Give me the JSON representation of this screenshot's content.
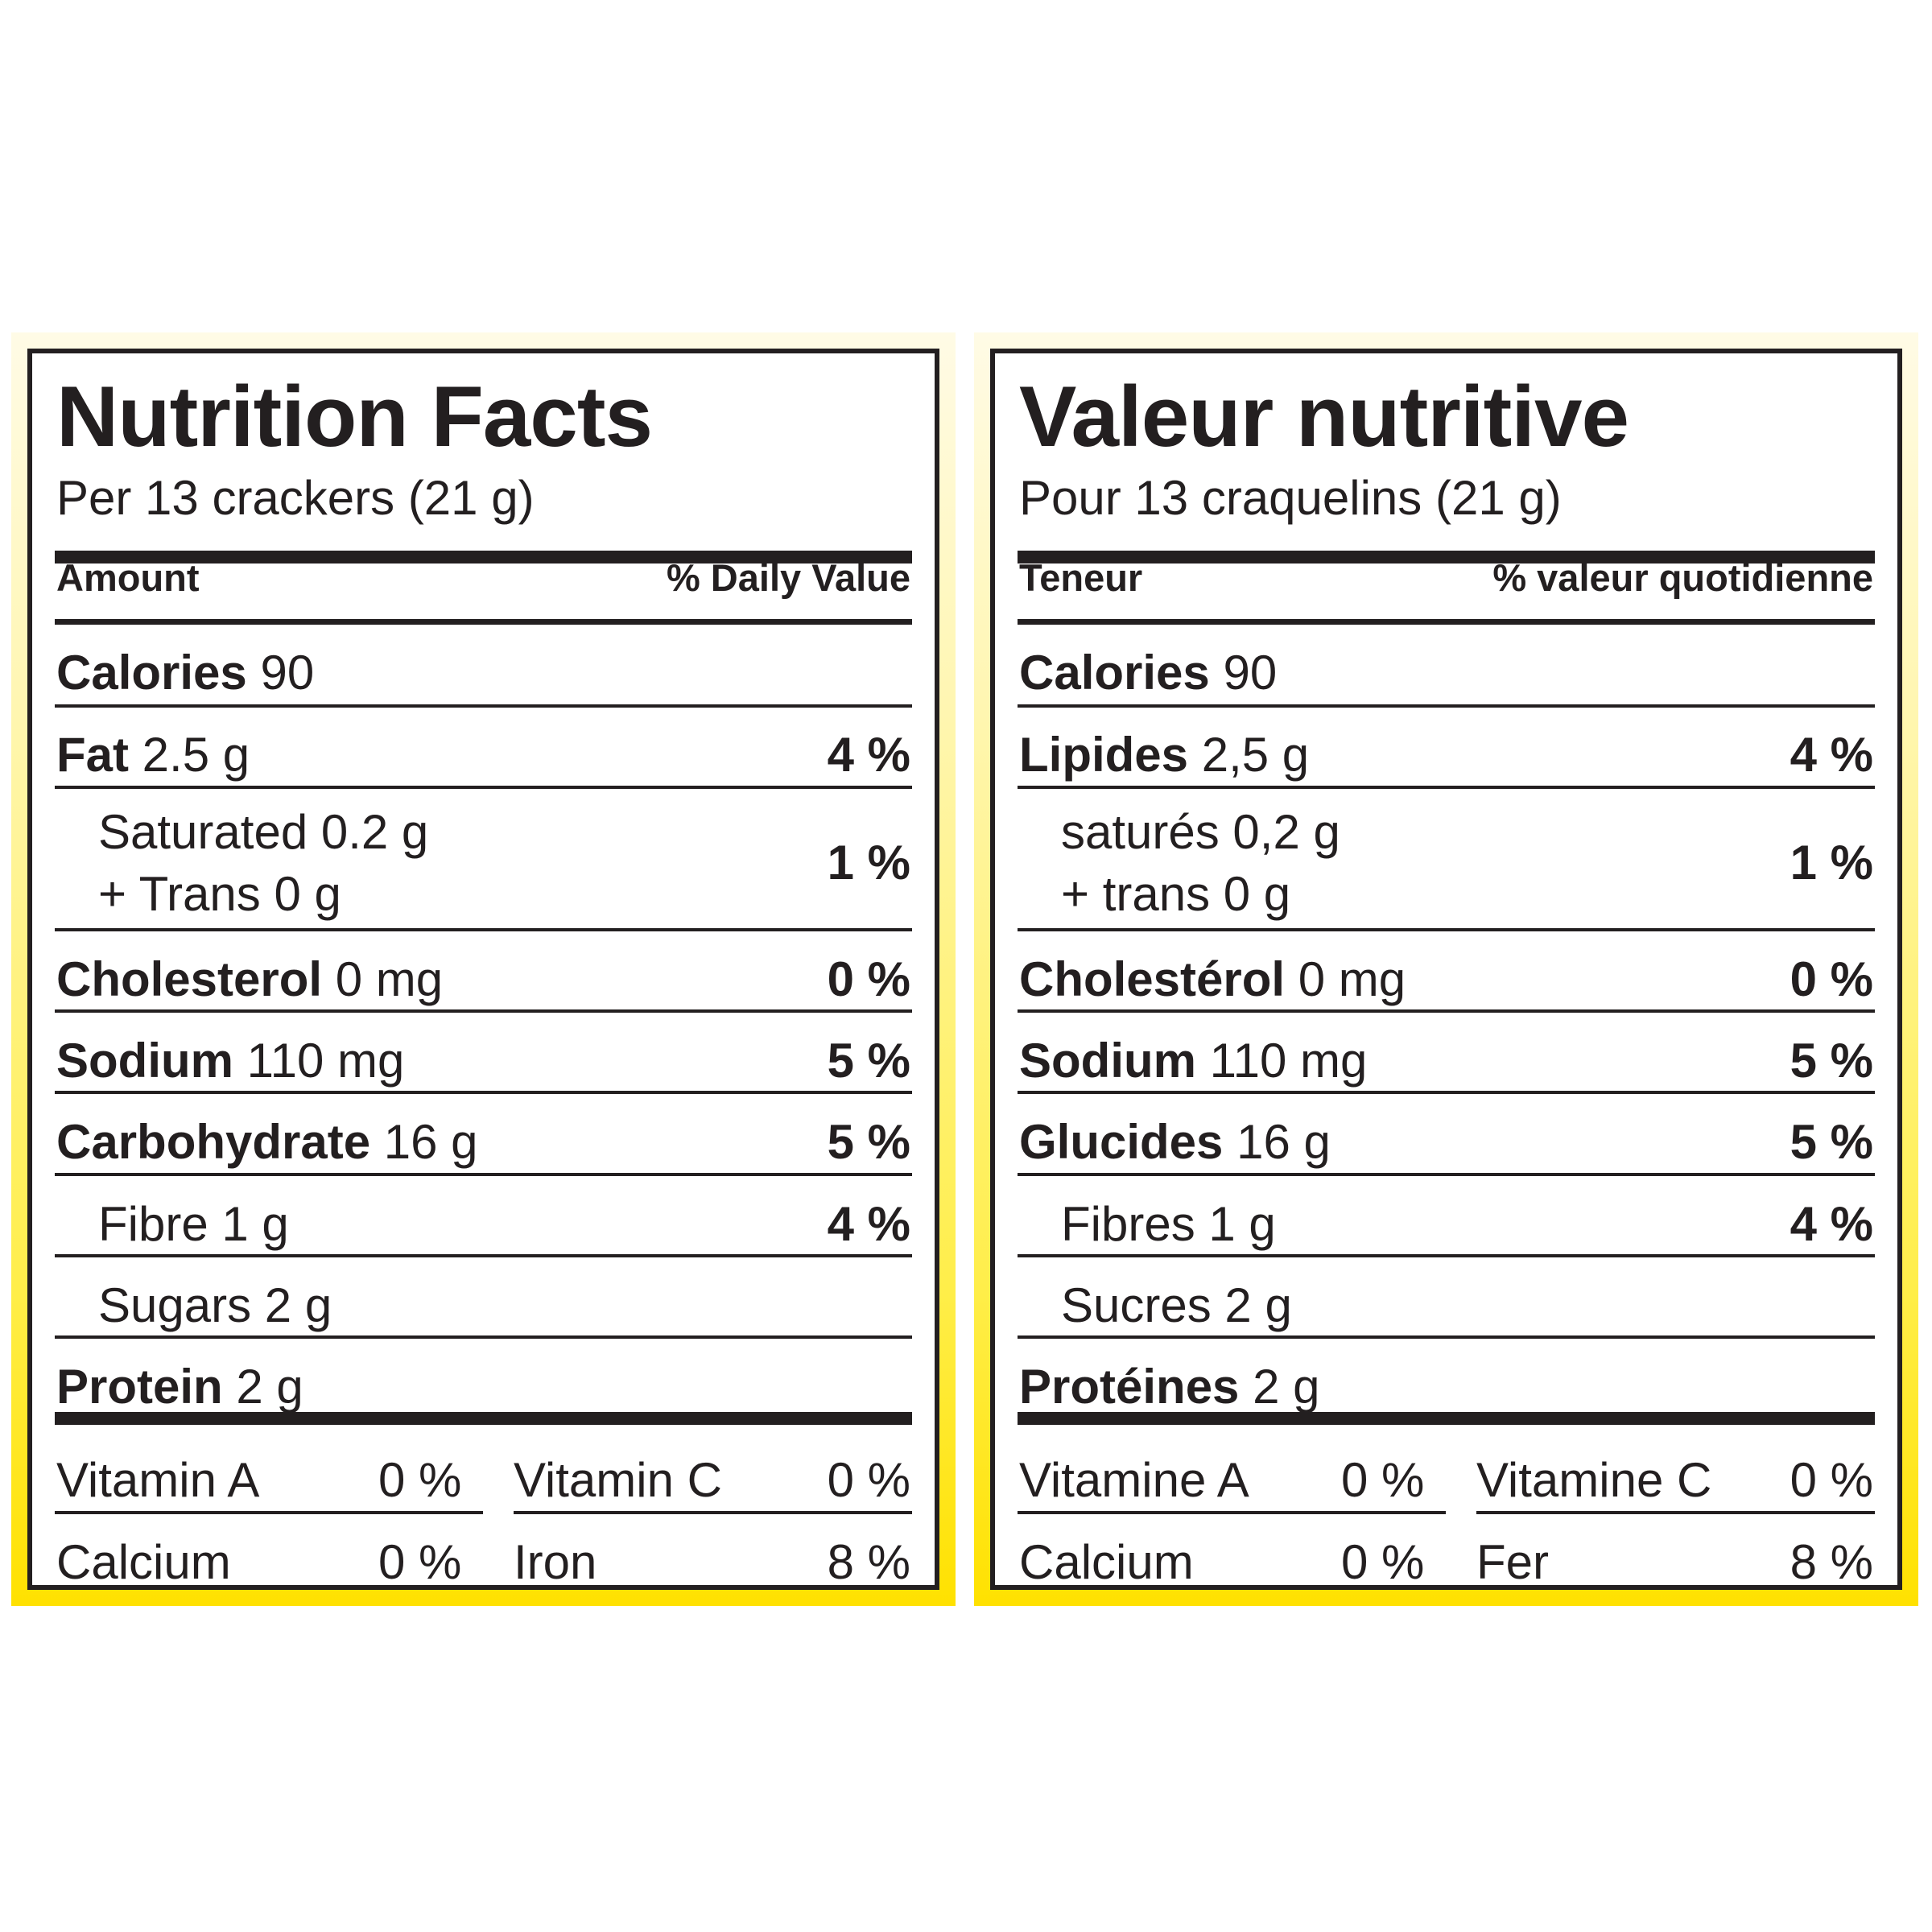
{
  "labels": [
    {
      "title": "Nutrition Facts",
      "serving": "Per 13 crackers (21 g)",
      "header_left": "Amount",
      "header_right": "% Daily Value",
      "calories_label": "Calories",
      "calories_value": "90",
      "rows": [
        {
          "name": "Fat",
          "amount": "2.5 g",
          "pct": "4 %"
        },
        {
          "name": "Saturated 0.2 g",
          "name2": "+ Trans 0 g",
          "pct": "1 %"
        },
        {
          "name": "Cholesterol",
          "amount": "0 mg",
          "pct": "0 %"
        },
        {
          "name": "Sodium",
          "amount": "110 mg",
          "pct": "5 %"
        },
        {
          "name": "Carbohydrate",
          "amount": "16 g",
          "pct": "5 %"
        },
        {
          "name": "Fibre 1 g",
          "pct": "4 %"
        },
        {
          "name": "Sugars 2 g"
        },
        {
          "name": "Protein",
          "amount": "2 g"
        }
      ],
      "vitamins": [
        {
          "name": "Vitamin A",
          "pct": "0 %"
        },
        {
          "name": "Vitamin C",
          "pct": "0 %"
        },
        {
          "name": "Calcium",
          "pct": "0 %"
        },
        {
          "name": "Iron",
          "pct": "8 %"
        }
      ]
    },
    {
      "title": "Valeur nutritive",
      "serving": "Pour 13 craquelins (21 g)",
      "header_left": "Teneur",
      "header_right": "% valeur quotidienne",
      "calories_label": "Calories",
      "calories_value": "90",
      "rows": [
        {
          "name": "Lipides",
          "amount": "2,5 g",
          "pct": "4 %"
        },
        {
          "name": "saturés 0,2 g",
          "name2": "+ trans 0 g",
          "pct": "1 %"
        },
        {
          "name": "Cholestérol",
          "amount": "0 mg",
          "pct": "0 %"
        },
        {
          "name": "Sodium",
          "amount": "110 mg",
          "pct": "5 %"
        },
        {
          "name": "Glucides",
          "amount": "16 g",
          "pct": "5 %"
        },
        {
          "name": "Fibres 1 g",
          "pct": "4 %"
        },
        {
          "name": "Sucres 2 g"
        },
        {
          "name": "Protéines",
          "amount": "2 g"
        }
      ],
      "vitamins": [
        {
          "name": "Vitamine A",
          "pct": "0 %"
        },
        {
          "name": "Vitamine C",
          "pct": "0 %"
        },
        {
          "name": "Calcium",
          "pct": "0 %"
        },
        {
          "name": "Fer",
          "pct": "8 %"
        }
      ]
    }
  ],
  "colors": {
    "frame_yellow": "#ffe100",
    "ink": "#231f20"
  }
}
